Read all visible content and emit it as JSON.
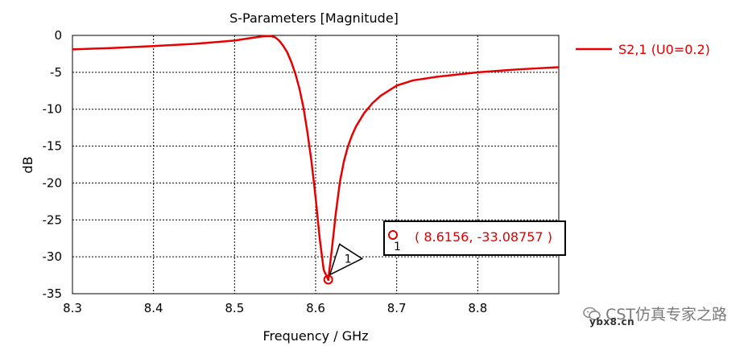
{
  "chart_data": {
    "type": "line",
    "title": "S-Parameters [Magnitude]",
    "xlabel": "Frequency / GHz",
    "ylabel": "dB",
    "xlim": [
      8.3,
      8.9
    ],
    "ylim": [
      -35,
      0
    ],
    "xticks": [
      "8.3",
      "8.4",
      "8.5",
      "8.6",
      "8.7",
      "8.8"
    ],
    "yticks": [
      "0",
      "-5",
      "-10",
      "-15",
      "-20",
      "-25",
      "-30",
      "-35"
    ],
    "grid": true,
    "legend_position": "right",
    "series": [
      {
        "name": "S2,1 (U0=0.2)",
        "color": "#e60000",
        "x": [
          8.3,
          8.35,
          8.4,
          8.45,
          8.5,
          8.52,
          8.535,
          8.545,
          8.55,
          8.555,
          8.56,
          8.565,
          8.57,
          8.575,
          8.58,
          8.585,
          8.59,
          8.595,
          8.6,
          8.605,
          8.61,
          8.6156,
          8.62,
          8.625,
          8.63,
          8.635,
          8.64,
          8.645,
          8.65,
          8.66,
          8.67,
          8.68,
          8.7,
          8.72,
          8.75,
          8.8,
          8.85,
          8.9
        ],
        "y": [
          -1.9,
          -1.7,
          -1.45,
          -1.15,
          -0.7,
          -0.35,
          -0.12,
          -0.1,
          -0.25,
          -0.7,
          -1.4,
          -2.3,
          -3.6,
          -5.2,
          -7.2,
          -9.8,
          -13.2,
          -17.2,
          -22.0,
          -27.5,
          -31.8,
          -33.09,
          -29.0,
          -24.0,
          -19.8,
          -17.0,
          -15.0,
          -13.5,
          -12.3,
          -10.5,
          -9.2,
          -8.2,
          -6.8,
          -6.1,
          -5.6,
          -5.0,
          -4.6,
          -4.3
        ]
      }
    ],
    "marker": {
      "id": "1",
      "x": 8.6156,
      "y": -33.08757,
      "label": "( 8.6156, -33.08757 )"
    }
  },
  "watermark": {
    "text": "CST仿真专家之路",
    "site": "ybx8.cn"
  }
}
